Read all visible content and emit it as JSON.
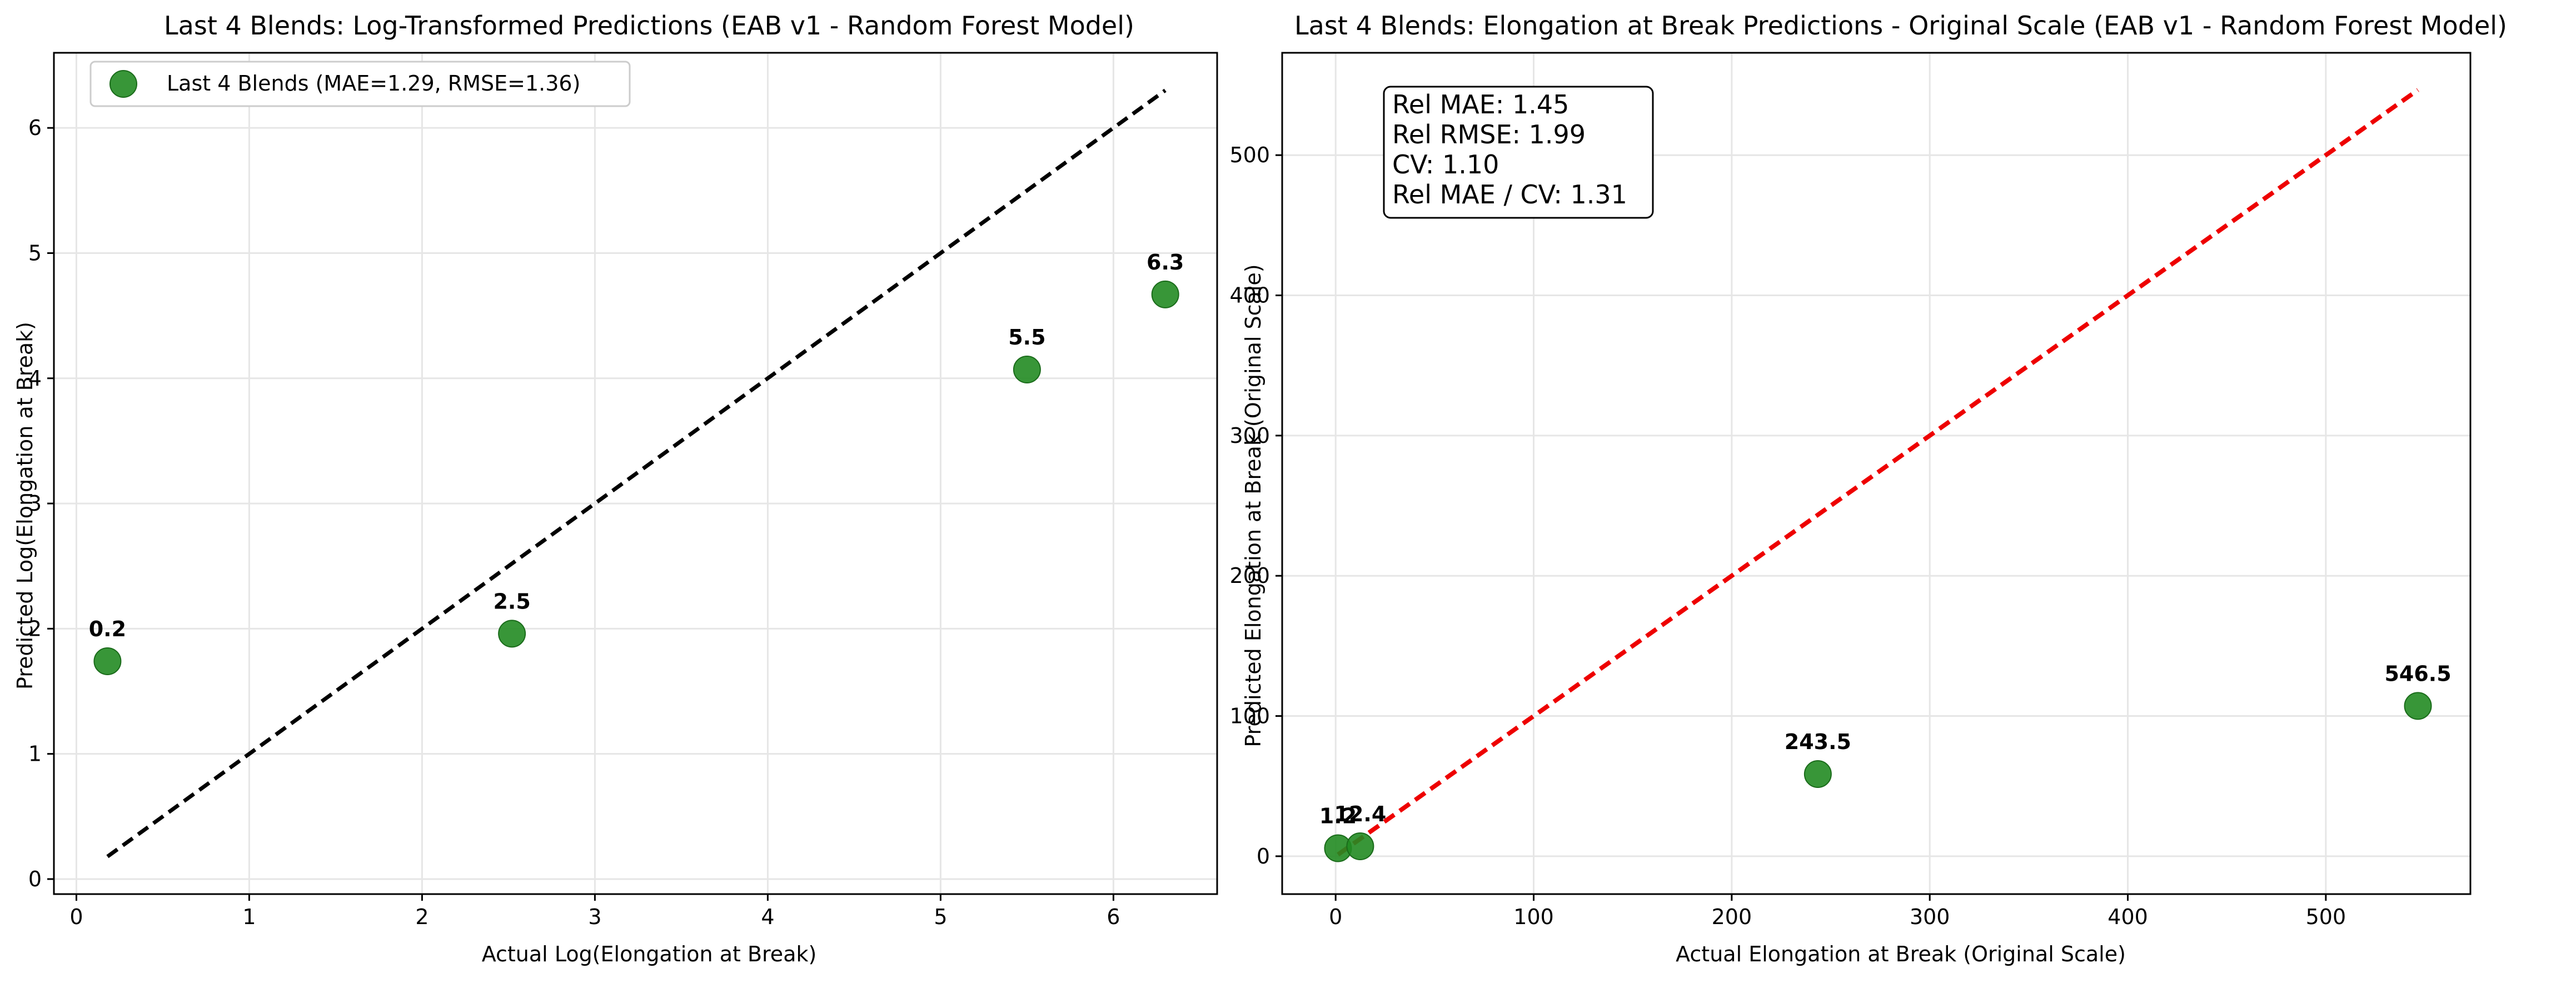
{
  "chart_data": [
    {
      "type": "scatter",
      "title": "Last 4 Blends: Log-Transformed Predictions (EAB v1 - Random Forest Model)",
      "xlabel": "Actual Log(Elongation at Break)",
      "ylabel": "Predicted Log(Elongation at Break)",
      "xlim": [
        -0.13,
        6.6
      ],
      "ylim": [
        -0.12,
        6.6
      ],
      "xticks": [
        0,
        1,
        2,
        3,
        4,
        5,
        6
      ],
      "yticks": [
        0,
        1,
        2,
        3,
        4,
        5,
        6
      ],
      "grid": true,
      "legend_position": "upper-left",
      "series": [
        {
          "name": "Last 4 Blends (MAE=1.29, RMSE=1.36)",
          "color": "#228B22",
          "x": [
            0.18,
            2.52,
            5.5,
            6.3
          ],
          "y": [
            1.74,
            1.96,
            4.07,
            4.67
          ],
          "point_labels": [
            "0.2",
            "2.5",
            "5.5",
            "6.3"
          ]
        }
      ],
      "reference_line": {
        "x": [
          0.18,
          6.3
        ],
        "y": [
          0.18,
          6.3
        ],
        "color": "#000000",
        "style": "dashed"
      }
    },
    {
      "type": "scatter",
      "title": "Last 4 Blends: Elongation at Break Predictions - Original Scale (EAB v1 - Random Forest Model)",
      "xlabel": "Actual Elongation at Break (Original Scale)",
      "ylabel": "Predicted Elongation at Break (Original Scale)",
      "xlim": [
        -27,
        573
      ],
      "ylim": [
        -27,
        573
      ],
      "xticks": [
        0,
        100,
        200,
        300,
        400,
        500
      ],
      "yticks": [
        0,
        100,
        200,
        300,
        400,
        500
      ],
      "grid": true,
      "annotation_lines": [
        "Rel MAE: 1.45",
        "Rel RMSE: 1.99",
        "CV: 1.10",
        "Rel MAE / CV: 1.31"
      ],
      "series": [
        {
          "color": "#228B22",
          "x": [
            1.2,
            12.4,
            243.5,
            546.5
          ],
          "y": [
            5.7,
            7.1,
            58.6,
            107.2
          ],
          "point_labels": [
            "1.2",
            "12.4",
            "243.5",
            "546.5"
          ]
        }
      ],
      "reference_line": {
        "x": [
          1.2,
          546.5
        ],
        "y": [
          1.2,
          546.5
        ],
        "color": "#EE0000",
        "style": "dashed"
      }
    }
  ]
}
